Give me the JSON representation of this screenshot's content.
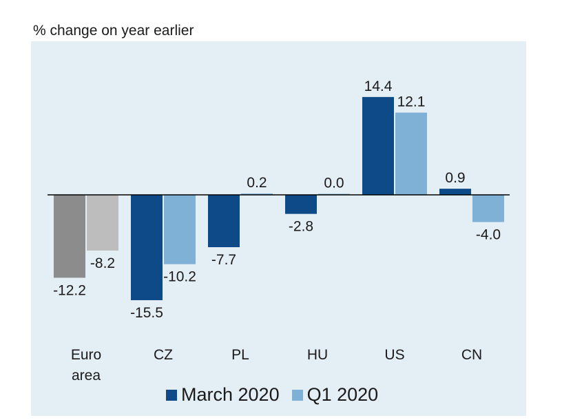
{
  "chart_data": {
    "type": "bar",
    "title": "",
    "ylabel": "% change on year earlier",
    "xlabel": "",
    "categories": [
      [
        "Euro",
        "area"
      ],
      [
        "CZ"
      ],
      [
        "PL"
      ],
      [
        "HU"
      ],
      [
        "US"
      ],
      [
        "CN"
      ]
    ],
    "series": [
      {
        "name": "March 2020",
        "values": [
          -12.2,
          -15.5,
          -7.7,
          -2.8,
          14.4,
          0.9
        ],
        "labels": [
          "-12.2",
          "-15.5",
          "-7.7",
          "-2.8",
          "14.4",
          "0.9"
        ],
        "color": "#0d4a87",
        "first_color": "#8c8c8c"
      },
      {
        "name": "Q1 2020",
        "values": [
          -8.2,
          -10.2,
          0.2,
          0.0,
          12.1,
          -4.0
        ],
        "labels": [
          "-8.2",
          "-10.2",
          "0.2",
          "0.0",
          "12.1",
          "-4.0"
        ],
        "color": "#7fb0d5",
        "first_color": "#bdbdbd"
      }
    ],
    "legend": "bottom",
    "grid": false
  }
}
